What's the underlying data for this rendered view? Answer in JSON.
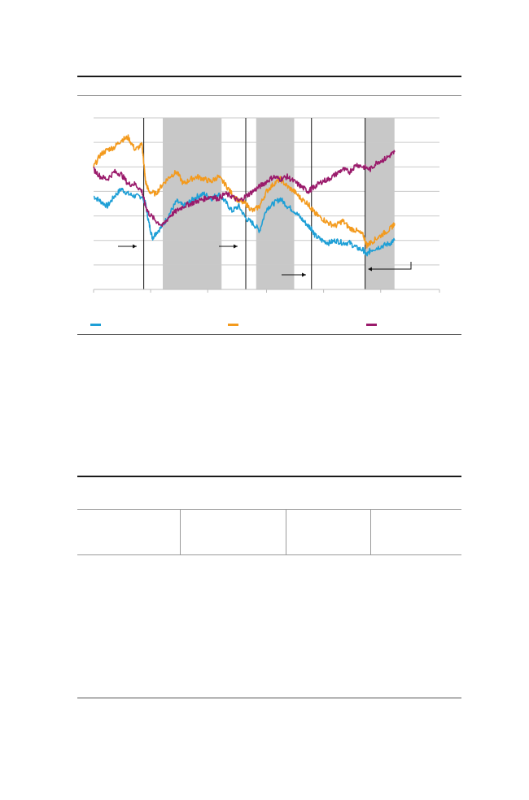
{
  "colors": {
    "series_blue": "#1e9fd6",
    "series_orange": "#f39a1d",
    "series_purple": "#9a1a6b",
    "shade": "#c8c8c8"
  },
  "chart_data": {
    "type": "line",
    "ylim": [
      0,
      7
    ],
    "xlim": [
      0,
      100
    ],
    "grid": true,
    "gridlines_y": [
      1,
      2,
      3,
      4,
      5,
      6,
      7
    ],
    "shaded_x_ranges": [
      [
        20,
        37
      ],
      [
        47,
        58
      ],
      [
        78.5,
        87
      ]
    ],
    "event_lines_x": [
      14.5,
      44,
      63,
      78.5
    ],
    "series": [
      {
        "color": "#1e9fd6",
        "x": [
          0,
          2,
          4,
          6,
          8,
          10,
          12,
          14,
          15,
          16,
          17,
          18,
          20,
          22,
          24,
          26,
          28,
          30,
          32,
          34,
          36,
          38,
          40,
          42,
          44,
          46,
          48,
          50,
          52,
          54,
          56,
          58,
          60,
          62,
          63,
          64,
          66,
          68,
          70,
          72,
          74,
          76,
          78,
          79,
          80,
          82,
          84,
          86,
          87
        ],
        "values": [
          3.8,
          3.6,
          3.4,
          3.8,
          4.1,
          3.9,
          3.8,
          3.8,
          3.5,
          2.7,
          2.1,
          2.3,
          2.6,
          3.1,
          3.6,
          3.4,
          3.6,
          3.8,
          3.9,
          3.7,
          3.9,
          3.6,
          3.2,
          3.4,
          2.9,
          2.7,
          2.4,
          3.3,
          3.5,
          3.7,
          3.4,
          3.2,
          2.9,
          2.6,
          2.5,
          2.2,
          2.0,
          1.9,
          2.0,
          1.9,
          1.9,
          1.7,
          1.6,
          1.4,
          1.6,
          1.7,
          1.8,
          1.9,
          2.0
        ]
      },
      {
        "color": "#f39a1d",
        "x": [
          0,
          2,
          4,
          6,
          8,
          10,
          12,
          14,
          14.5,
          15,
          16,
          18,
          20,
          22,
          24,
          26,
          28,
          30,
          32,
          34,
          36,
          38,
          40,
          42,
          44,
          46,
          48,
          50,
          52,
          54,
          56,
          58,
          60,
          62,
          63,
          64,
          66,
          68,
          70,
          72,
          74,
          76,
          78,
          79,
          80,
          82,
          84,
          86,
          87
        ],
        "values": [
          5.0,
          5.5,
          5.7,
          5.8,
          6.1,
          6.2,
          5.7,
          5.9,
          5.2,
          4.4,
          4.0,
          3.9,
          4.3,
          4.6,
          4.8,
          4.3,
          4.5,
          4.6,
          4.5,
          4.4,
          4.6,
          4.3,
          3.9,
          3.6,
          3.5,
          3.2,
          3.4,
          4.0,
          4.3,
          4.5,
          4.2,
          4.0,
          3.7,
          3.5,
          3.3,
          3.1,
          2.9,
          2.7,
          2.6,
          2.8,
          2.5,
          2.4,
          2.2,
          1.8,
          1.9,
          2.1,
          2.3,
          2.5,
          2.7
        ]
      },
      {
        "color": "#9a1a6b",
        "x": [
          0,
          2,
          4,
          6,
          8,
          10,
          12,
          14,
          15,
          16,
          18,
          20,
          22,
          24,
          26,
          28,
          30,
          32,
          34,
          36,
          38,
          40,
          42,
          44,
          46,
          48,
          50,
          52,
          54,
          56,
          58,
          60,
          62,
          63,
          64,
          66,
          68,
          70,
          72,
          74,
          76,
          78,
          80,
          82,
          84,
          86,
          87
        ],
        "values": [
          4.9,
          4.6,
          4.5,
          4.8,
          4.7,
          4.3,
          4.3,
          4.0,
          3.4,
          3.1,
          2.8,
          2.6,
          3.0,
          3.2,
          3.4,
          3.5,
          3.6,
          3.7,
          3.8,
          3.7,
          3.9,
          3.8,
          3.6,
          3.8,
          4.0,
          4.2,
          4.4,
          4.6,
          4.5,
          4.6,
          4.4,
          4.2,
          4.0,
          4.1,
          4.2,
          4.4,
          4.5,
          4.7,
          4.9,
          4.8,
          5.1,
          5.0,
          4.9,
          5.2,
          5.3,
          5.5,
          5.6
        ]
      }
    ]
  }
}
